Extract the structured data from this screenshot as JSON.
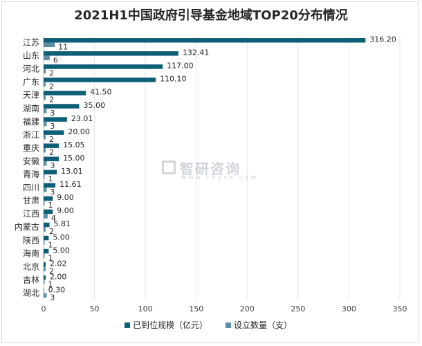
{
  "chart_data": {
    "type": "bar",
    "orientation": "horizontal",
    "title": "2021H1中国政府引导基金地域TOP20分布情况",
    "categories": [
      "江苏",
      "山东",
      "河北",
      "广东",
      "天津",
      "湖南",
      "福建",
      "浙江",
      "重庆",
      "安徽",
      "青海",
      "四川",
      "甘肃",
      "江西",
      "内蒙古",
      "陕西",
      "海南",
      "北京",
      "吉林",
      "湖北"
    ],
    "series": [
      {
        "name": "已到位规模（亿元）",
        "color": "#0f5e78",
        "values": [
          316.2,
          132.41,
          117.0,
          110.1,
          41.5,
          35.0,
          23.01,
          20.0,
          15.05,
          15.0,
          13.01,
          11.61,
          9.0,
          9.0,
          5.81,
          5.0,
          5.0,
          2.02,
          2.0,
          0.3
        ],
        "labels": [
          "316.20",
          "132.41",
          "117.00",
          "110.10",
          "41.50",
          "35.00",
          "23.01",
          "20.00",
          "15.05",
          "15.00",
          "13.01",
          "11.61",
          "9.00",
          "9.00",
          "5.81",
          "5.00",
          "5.00",
          "2.02",
          "2.00",
          "0.30"
        ]
      },
      {
        "name": "设立数量（支）",
        "color": "#5b8fa8",
        "values": [
          11,
          6,
          2,
          2,
          2,
          3,
          3,
          2,
          2,
          3,
          1,
          3,
          1,
          4,
          2,
          1,
          1,
          2,
          1,
          3
        ],
        "labels": [
          "11",
          "6",
          "2",
          "2",
          "2",
          "3",
          "3",
          "2",
          "2",
          "3",
          "1",
          "3",
          "1",
          "4",
          "2",
          "1",
          "1",
          "2",
          "1",
          "3"
        ]
      }
    ],
    "xlim": [
      0,
      350
    ],
    "xticks": [
      "0",
      "50",
      "100",
      "150",
      "200",
      "250",
      "300",
      "350"
    ],
    "xtick_values": [
      0,
      50,
      100,
      150,
      200,
      250,
      300,
      350
    ],
    "grid": true,
    "legend": "bottom"
  },
  "watermark": {
    "main": "智研咨询",
    "sub": "www.chyxx.com"
  }
}
